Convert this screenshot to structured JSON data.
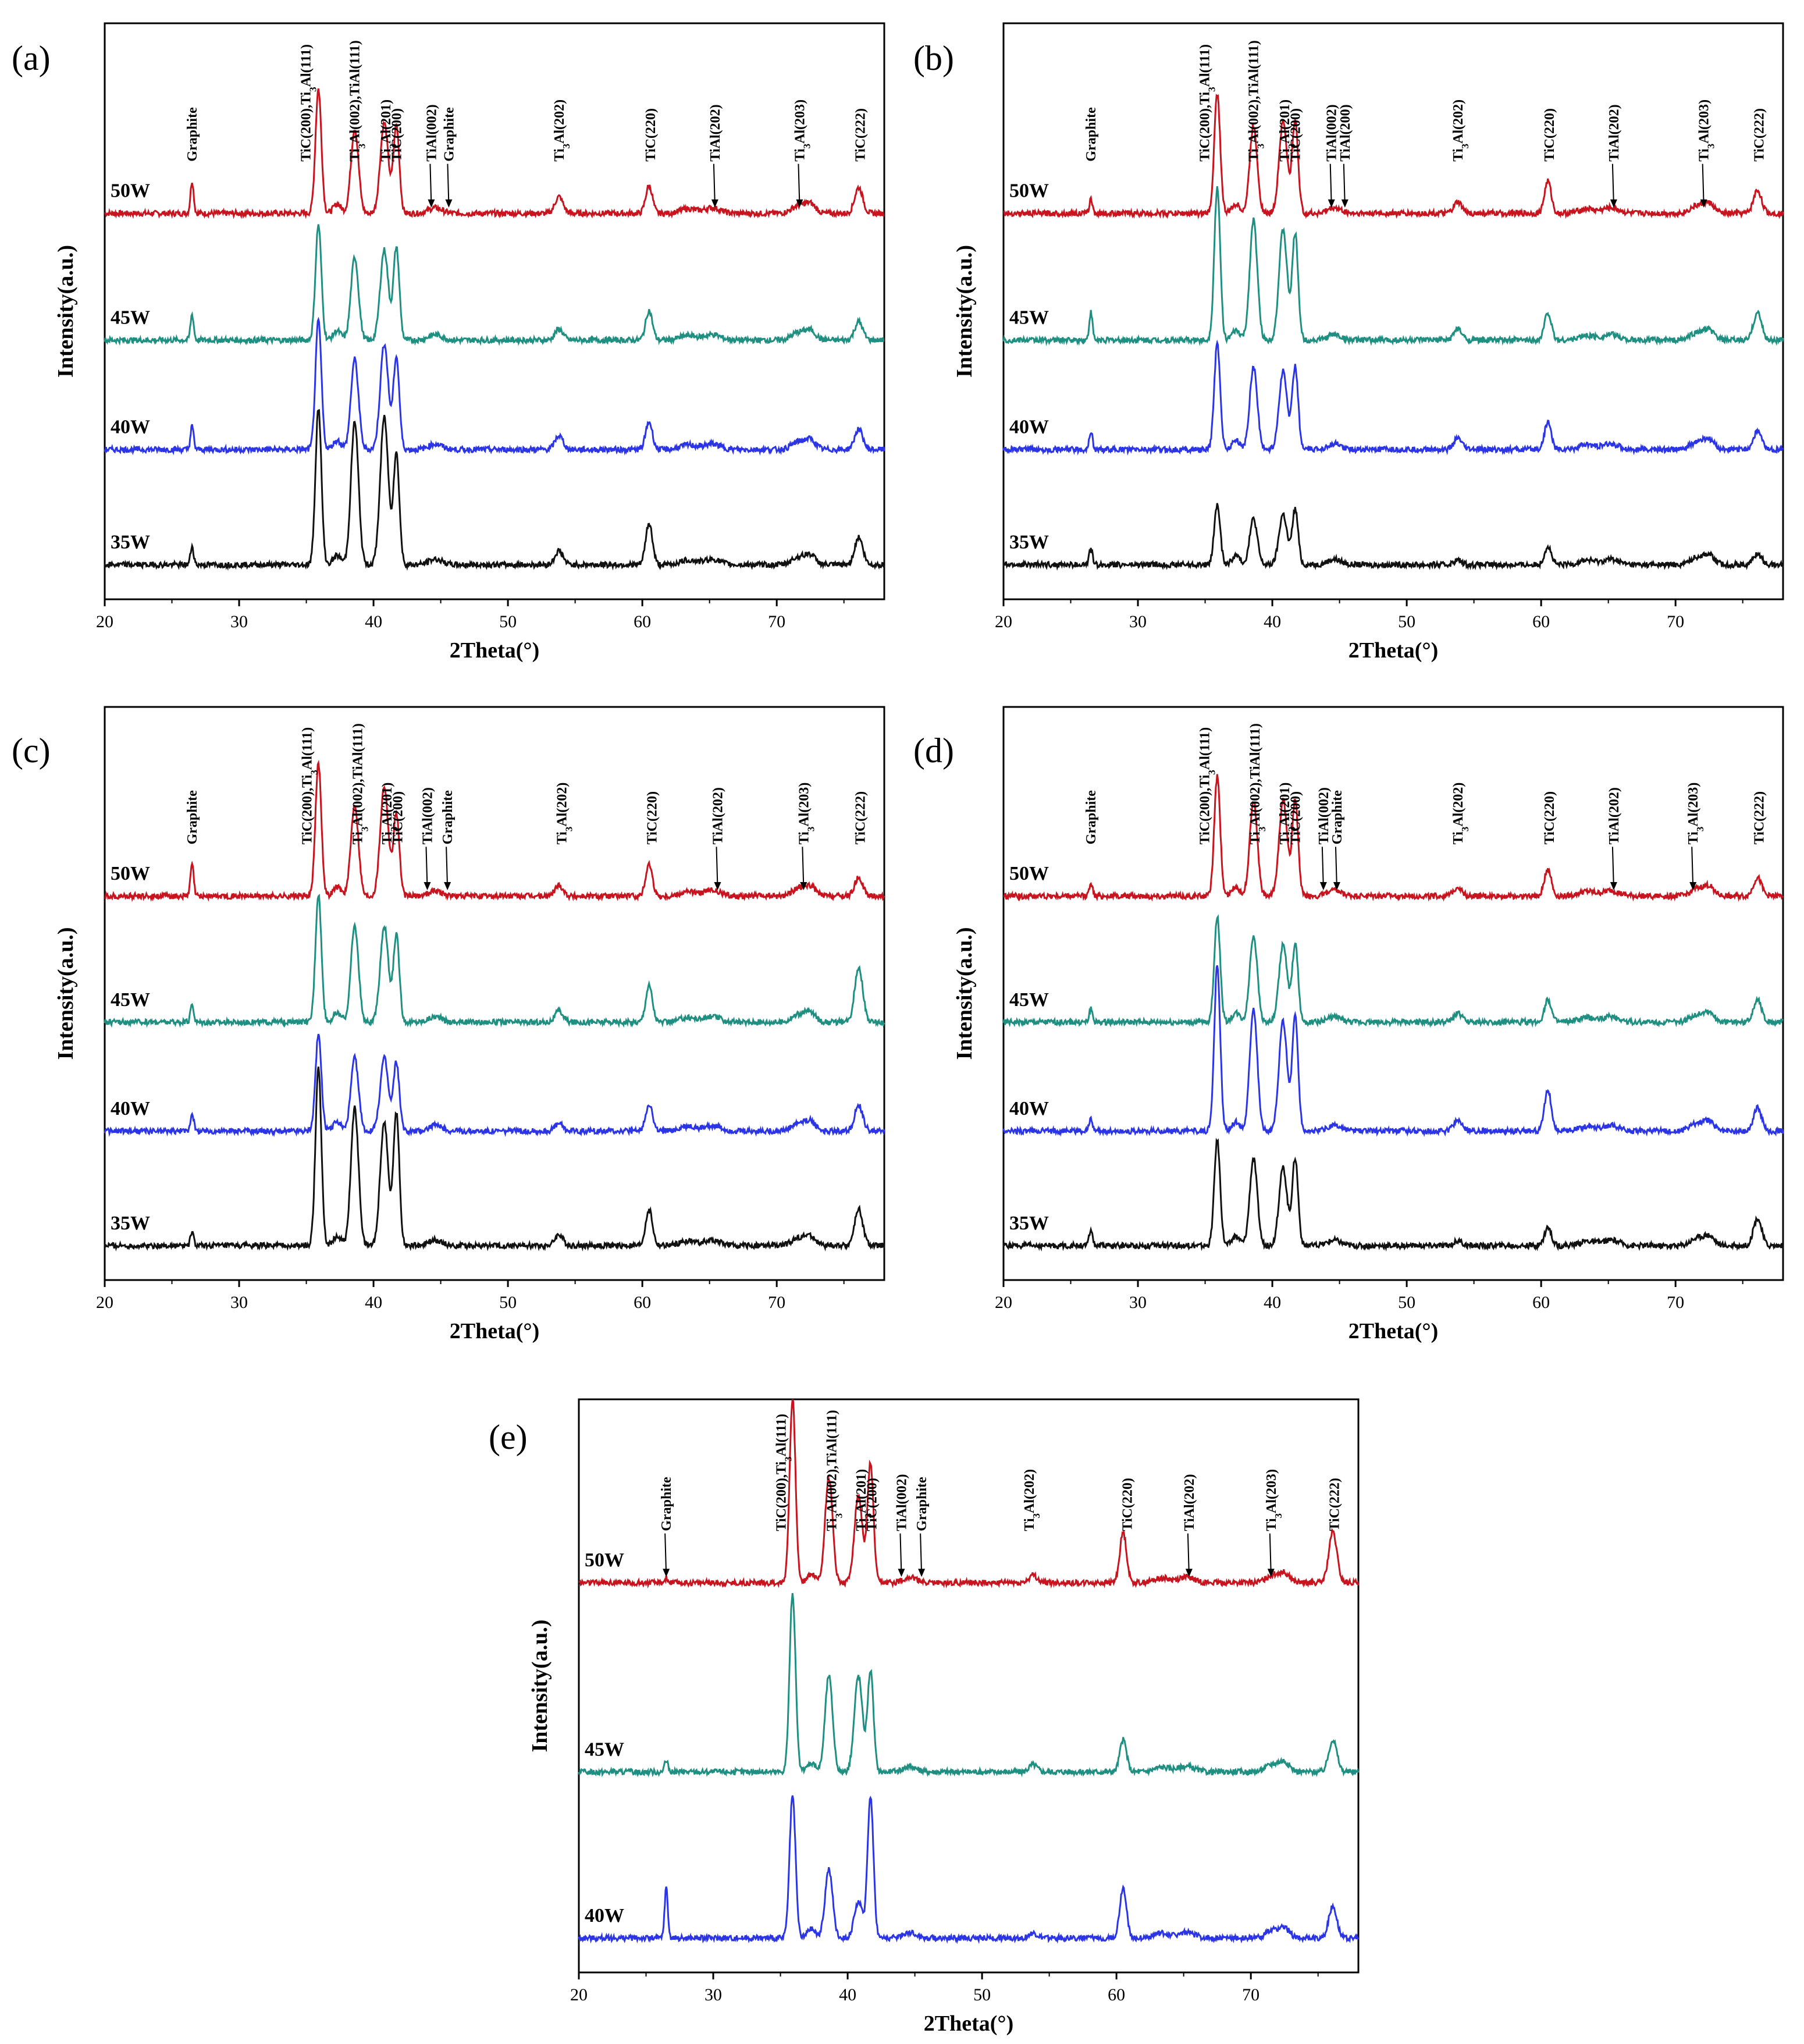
{
  "figure": {
    "description_free": true
  },
  "chart_data": [
    {
      "panel": "(a)",
      "type": "line",
      "xlabel": "2Theta(°)",
      "ylabel": "Intensity(a.u.)",
      "xlim": [
        20,
        78
      ],
      "xticks": [
        20,
        30,
        40,
        50,
        60,
        70
      ],
      "peaks": [
        {
          "x": 26.5,
          "label": "Graphite",
          "arrow": false
        },
        {
          "x": 35.9,
          "label": "TiC(200),Ti3Al(111)",
          "arrow": false
        },
        {
          "x": 38.6,
          "label": "Ti3Al(002),TiAl(111)",
          "arrow": false
        },
        {
          "x": 40.9,
          "label": "Ti3Al(201)",
          "arrow": false
        },
        {
          "x": 41.7,
          "label": "TiC(200)",
          "arrow": false
        },
        {
          "x": 44.3,
          "label": "TiAl(002)",
          "arrow": true
        },
        {
          "x": 45.6,
          "label": "Graphite",
          "arrow": true
        },
        {
          "x": 53.8,
          "label": "Ti3Al(202)",
          "arrow": false
        },
        {
          "x": 60.6,
          "label": "TiC(220)",
          "arrow": false
        },
        {
          "x": 65.4,
          "label": "TiAl(202)",
          "arrow": true
        },
        {
          "x": 71.7,
          "label": "Ti3Al(203)",
          "arrow": true
        },
        {
          "x": 76.2,
          "label": "TiC(222)",
          "arrow": false
        }
      ],
      "series": [
        {
          "name": "50W",
          "color": "#c8141e",
          "intensities": {
            "graphite": 0.35,
            "p359": 1.35,
            "p386": 0.92,
            "p409": 0.98,
            "p417": 0.95,
            "p537": 0.18,
            "p606": 0.3,
            "p762": 0.28
          }
        },
        {
          "name": "45W",
          "color": "#1f8f82",
          "intensities": {
            "graphite": 0.28,
            "p359": 1.25,
            "p386": 0.9,
            "p409": 0.98,
            "p417": 1.0,
            "p537": 0.12,
            "p606": 0.32,
            "p762": 0.2
          }
        },
        {
          "name": "40W",
          "color": "#2b35e6",
          "intensities": {
            "graphite": 0.25,
            "p359": 1.4,
            "p386": 0.98,
            "p409": 1.15,
            "p417": 1.0,
            "p537": 0.15,
            "p606": 0.3,
            "p762": 0.22
          }
        },
        {
          "name": "35W",
          "color": "#111111",
          "intensities": {
            "graphite": 0.2,
            "p359": 1.7,
            "p386": 1.55,
            "p409": 1.6,
            "p417": 1.2,
            "p537": 0.15,
            "p606": 0.45,
            "p762": 0.3
          }
        }
      ]
    },
    {
      "panel": "(b)",
      "type": "line",
      "xlabel": "2Theta(°)",
      "ylabel": "Intensity(a.u.)",
      "xlim": [
        20,
        78
      ],
      "xticks": [
        20,
        30,
        40,
        50,
        60,
        70
      ],
      "peaks": [
        {
          "x": 26.5,
          "label": "Graphite",
          "arrow": false
        },
        {
          "x": 35.9,
          "label": "TiC(200),Ti3Al(111)",
          "arrow": false
        },
        {
          "x": 38.6,
          "label": "Ti3Al(002),TiAl(111)",
          "arrow": false
        },
        {
          "x": 40.9,
          "label": "Ti3Al(201)",
          "arrow": false
        },
        {
          "x": 41.7,
          "label": "TiC(200)",
          "arrow": false
        },
        {
          "x": 44.4,
          "label": "TiAl(002)",
          "arrow": true
        },
        {
          "x": 45.4,
          "label": "TiAl(200)",
          "arrow": true
        },
        {
          "x": 53.8,
          "label": "Ti3Al(202)",
          "arrow": false
        },
        {
          "x": 60.6,
          "label": "TiC(220)",
          "arrow": false
        },
        {
          "x": 65.4,
          "label": "TiAl(202)",
          "arrow": true
        },
        {
          "x": 72.1,
          "label": "Ti3Al(203)",
          "arrow": true
        },
        {
          "x": 76.2,
          "label": "TiC(222)",
          "arrow": false
        }
      ],
      "series": [
        {
          "name": "50W",
          "color": "#c8141e",
          "intensities": {
            "graphite": 0.15,
            "p359": 1.3,
            "p386": 0.95,
            "p409": 1.0,
            "p417": 1.0,
            "p537": 0.12,
            "p606": 0.35,
            "p762": 0.25
          }
        },
        {
          "name": "45W",
          "color": "#1f8f82",
          "intensities": {
            "graphite": 0.3,
            "p359": 1.65,
            "p386": 1.3,
            "p409": 1.2,
            "p417": 1.15,
            "p537": 0.12,
            "p606": 0.3,
            "p762": 0.3
          }
        },
        {
          "name": "40W",
          "color": "#2b35e6",
          "intensities": {
            "graphite": 0.2,
            "p359": 1.15,
            "p386": 0.9,
            "p409": 0.85,
            "p417": 0.9,
            "p537": 0.12,
            "p606": 0.3,
            "p762": 0.2
          }
        },
        {
          "name": "35W",
          "color": "#111111",
          "intensities": {
            "graphite": 0.18,
            "p359": 0.65,
            "p386": 0.5,
            "p409": 0.55,
            "p417": 0.6,
            "p537": 0.05,
            "p606": 0.2,
            "p762": 0.12
          }
        }
      ]
    },
    {
      "panel": "(c)",
      "type": "line",
      "xlabel": "2Theta(°)",
      "ylabel": "Intensity(a.u.)",
      "xlim": [
        20,
        78
      ],
      "xticks": [
        20,
        30,
        40,
        50,
        60,
        70
      ],
      "peaks": [
        {
          "x": 26.5,
          "label": "Graphite",
          "arrow": false
        },
        {
          "x": 36.0,
          "label": "TiC(200),Ti3Al(111)",
          "arrow": false
        },
        {
          "x": 38.8,
          "label": "Ti3Al(002),TiAl(111)",
          "arrow": false
        },
        {
          "x": 41.0,
          "label": "Ti3Al(201)",
          "arrow": false
        },
        {
          "x": 41.8,
          "label": "TiC(200)",
          "arrow": false
        },
        {
          "x": 44.0,
          "label": "TiAl(002)",
          "arrow": true
        },
        {
          "x": 45.5,
          "label": "Graphite",
          "arrow": true
        },
        {
          "x": 54.0,
          "label": "Ti3Al(202)",
          "arrow": false
        },
        {
          "x": 60.7,
          "label": "TiC(220)",
          "arrow": false
        },
        {
          "x": 65.6,
          "label": "TiAl(202)",
          "arrow": true
        },
        {
          "x": 72.0,
          "label": "Ti3Al(203)",
          "arrow": true
        },
        {
          "x": 76.2,
          "label": "TiC(222)",
          "arrow": false
        }
      ],
      "series": [
        {
          "name": "50W",
          "color": "#c8141e",
          "intensities": {
            "graphite": 0.35,
            "p359": 1.45,
            "p386": 1.0,
            "p409": 1.2,
            "p417": 0.9,
            "p537": 0.12,
            "p606": 0.35,
            "p762": 0.2
          }
        },
        {
          "name": "45W",
          "color": "#1f8f82",
          "intensities": {
            "graphite": 0.2,
            "p359": 1.4,
            "p386": 1.05,
            "p409": 1.05,
            "p417": 0.95,
            "p537": 0.12,
            "p606": 0.4,
            "p762": 0.6
          }
        },
        {
          "name": "40W",
          "color": "#2b35e6",
          "intensities": {
            "graphite": 0.2,
            "p359": 1.05,
            "p386": 0.8,
            "p409": 0.8,
            "p417": 0.75,
            "p537": 0.08,
            "p606": 0.3,
            "p762": 0.28
          }
        },
        {
          "name": "35W",
          "color": "#111111",
          "intensities": {
            "graphite": 0.15,
            "p359": 1.95,
            "p386": 1.5,
            "p409": 1.35,
            "p417": 1.45,
            "p537": 0.12,
            "p606": 0.4,
            "p762": 0.4
          }
        }
      ]
    },
    {
      "panel": "(d)",
      "type": "line",
      "xlabel": "2Theta(°)",
      "ylabel": "Intensity(a.u.)",
      "xlim": [
        20,
        78
      ],
      "xticks": [
        20,
        30,
        40,
        50,
        60,
        70
      ],
      "peaks": [
        {
          "x": 26.5,
          "label": "Graphite",
          "arrow": false
        },
        {
          "x": 35.9,
          "label": "TiC(200),Ti3Al(111)",
          "arrow": false
        },
        {
          "x": 38.7,
          "label": "Ti3Al(002),TiAl(111)",
          "arrow": false
        },
        {
          "x": 40.9,
          "label": "Ti3Al(201)",
          "arrow": false
        },
        {
          "x": 41.7,
          "label": "TiC(200)",
          "arrow": false
        },
        {
          "x": 43.8,
          "label": "TiAl(002)",
          "arrow": true
        },
        {
          "x": 44.8,
          "label": "Graphite",
          "arrow": true
        },
        {
          "x": 53.8,
          "label": "Ti3Al(202)",
          "arrow": false
        },
        {
          "x": 60.6,
          "label": "TiC(220)",
          "arrow": false
        },
        {
          "x": 65.4,
          "label": "TiAl(202)",
          "arrow": true
        },
        {
          "x": 71.3,
          "label": "Ti3Al(203)",
          "arrow": true
        },
        {
          "x": 76.2,
          "label": "TiC(222)",
          "arrow": false
        }
      ],
      "series": [
        {
          "name": "50W",
          "color": "#c8141e",
          "intensities": {
            "graphite": 0.15,
            "p359": 1.3,
            "p386": 1.05,
            "p409": 1.05,
            "p417": 1.05,
            "p537": 0.1,
            "p606": 0.3,
            "p762": 0.2
          }
        },
        {
          "name": "45W",
          "color": "#1f8f82",
          "intensities": {
            "graphite": 0.15,
            "p359": 1.15,
            "p386": 0.95,
            "p409": 0.85,
            "p417": 0.85,
            "p537": 0.1,
            "p606": 0.25,
            "p762": 0.25
          }
        },
        {
          "name": "40W",
          "color": "#2b35e6",
          "intensities": {
            "graphite": 0.15,
            "p359": 1.8,
            "p386": 1.35,
            "p409": 1.2,
            "p417": 1.25,
            "p537": 0.12,
            "p606": 0.45,
            "p762": 0.25
          }
        },
        {
          "name": "35W",
          "color": "#111111",
          "intensities": {
            "graphite": 0.18,
            "p359": 1.15,
            "p386": 0.95,
            "p409": 0.85,
            "p417": 0.95,
            "p537": 0.05,
            "p606": 0.2,
            "p762": 0.3
          }
        }
      ]
    },
    {
      "panel": "(e)",
      "type": "line",
      "xlabel": "2Theta(°)",
      "ylabel": "Intensity(a.u.)",
      "xlim": [
        20,
        78
      ],
      "xticks": [
        20,
        30,
        40,
        50,
        60,
        70
      ],
      "peaks": [
        {
          "x": 26.5,
          "label": "Graphite",
          "arrow": true
        },
        {
          "x": 36.0,
          "label": "TiC(200),Ti3Al(111)",
          "arrow": false
        },
        {
          "x": 38.8,
          "label": "Ti3Al(002),TiAl(111)",
          "arrow": false
        },
        {
          "x": 41.0,
          "label": "Ti3Al(201)",
          "arrow": false
        },
        {
          "x": 41.8,
          "label": "TiC(200)",
          "arrow": false
        },
        {
          "x": 44.0,
          "label": "TiAl(002)",
          "arrow": true
        },
        {
          "x": 45.5,
          "label": "Graphite",
          "arrow": true
        },
        {
          "x": 53.5,
          "label": "Ti3Al(202)",
          "arrow": false
        },
        {
          "x": 60.8,
          "label": "TiC(220)",
          "arrow": false
        },
        {
          "x": 65.4,
          "label": "TiAl(202)",
          "arrow": true
        },
        {
          "x": 71.5,
          "label": "Ti3Al(203)",
          "arrow": true
        },
        {
          "x": 76.2,
          "label": "TiC(222)",
          "arrow": false
        }
      ],
      "series": [
        {
          "name": "50W",
          "color": "#c8141e",
          "intensities": {
            "graphite": 0.05,
            "p359": 2.0,
            "p386": 1.15,
            "p409": 0.95,
            "p417": 1.3,
            "p537": 0.08,
            "p606": 0.55,
            "p762": 0.55
          }
        },
        {
          "name": "45W",
          "color": "#1f8f82",
          "intensities": {
            "graphite": 0.12,
            "p359": 1.95,
            "p386": 1.05,
            "p409": 1.05,
            "p417": 1.1,
            "p537": 0.08,
            "p606": 0.35,
            "p762": 0.35
          }
        },
        {
          "name": "40W",
          "color": "#2b35e6",
          "intensities": {
            "graphite": 0.55,
            "p359": 1.55,
            "p386": 0.75,
            "p409": 0.4,
            "p417": 1.55,
            "p537": 0.05,
            "p606": 0.55,
            "p762": 0.35
          }
        }
      ]
    }
  ]
}
